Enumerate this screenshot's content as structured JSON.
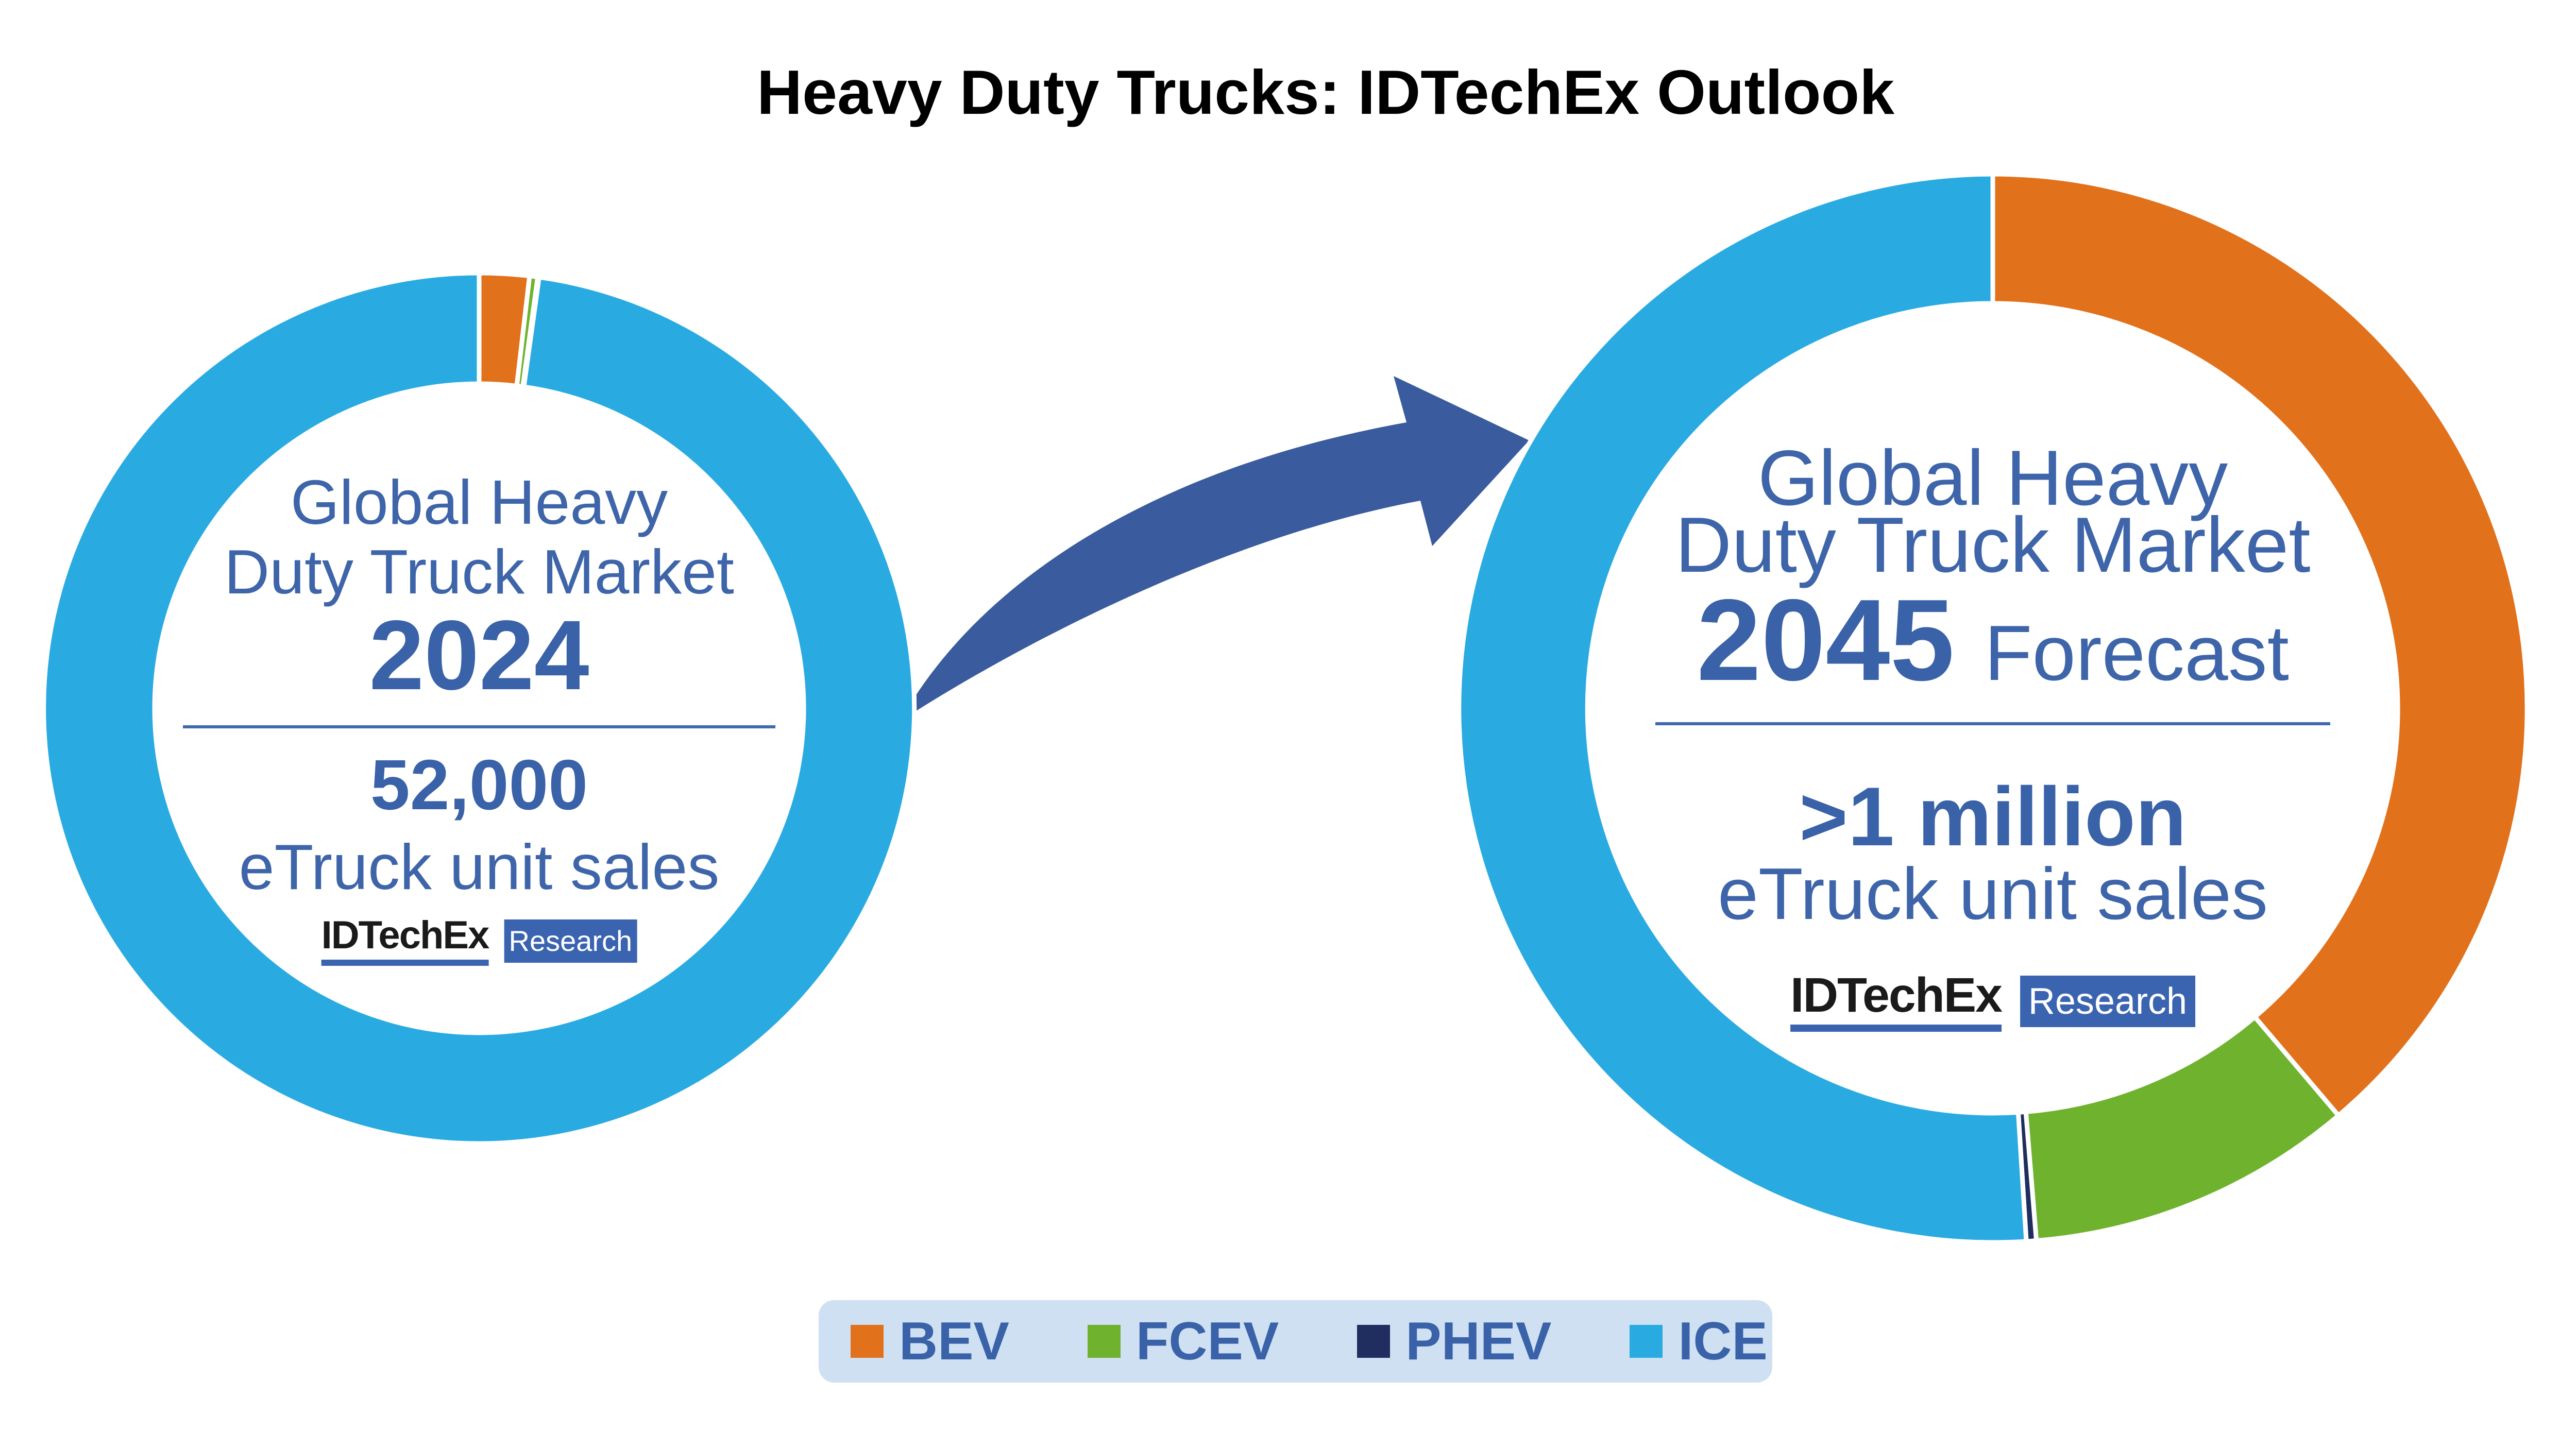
{
  "title": "Heavy Duty Trucks: IDTechEx Outlook",
  "colors": {
    "title_text": "#2E5CA8",
    "body_text": "#3E65A9",
    "strong_text": "#3A62A8",
    "divider": "#4169AE",
    "arrow": "#3A5B9E",
    "legend_bg": "#CEE0F2",
    "logo_blue": "#3A64B0",
    "logo_black": "#1A1A1A",
    "series": {
      "BEV": "#E2711B",
      "FCEV": "#6EB22D",
      "PHEV": "#1F2D5F",
      "ICE": "#29ABE2"
    }
  },
  "legend": {
    "items": [
      {
        "label": "BEV",
        "color": "#E2711B"
      },
      {
        "label": "FCEV",
        "color": "#6EB22D"
      },
      {
        "label": "PHEV",
        "color": "#1F2D5F"
      },
      {
        "label": "ICE",
        "color": "#29ABE2"
      }
    ]
  },
  "donut_2024": {
    "line1": "Global Heavy",
    "line2": "Duty Truck Market",
    "year": "2024",
    "stat_value": "52,000",
    "stat_label": "eTruck unit sales",
    "logo_brand": "IDTechEx",
    "logo_sub": "Research"
  },
  "donut_2045": {
    "line1": "Global Heavy",
    "line2": "Duty Truck Market",
    "year": "2045",
    "year_suffix": "Forecast",
    "stat_value": ">1 million",
    "stat_label": "eTruck unit sales",
    "logo_brand": "IDTechEx",
    "logo_sub": "Research"
  },
  "chart_data": [
    {
      "type": "pie",
      "subtype": "donut",
      "title": "Global Heavy Duty Truck Market 2024",
      "categories": [
        "BEV",
        "FCEV",
        "PHEV",
        "ICE"
      ],
      "values": [
        1.85,
        0.3,
        0.05,
        97.8
      ],
      "unit": "% share of unit sales",
      "annotation": "52,000 eTruck unit sales",
      "start_angle_deg": 0,
      "direction": "clockwise",
      "legend_position": "bottom"
    },
    {
      "type": "pie",
      "subtype": "donut",
      "title": "Global Heavy Duty Truck Market 2045 Forecast",
      "categories": [
        "BEV",
        "FCEV",
        "PHEV",
        "ICE"
      ],
      "values": [
        38.8,
        9.9,
        0.3,
        51.0
      ],
      "unit": "% share of unit sales",
      "annotation": ">1 million eTruck unit sales",
      "start_angle_deg": 0,
      "direction": "clockwise",
      "legend_position": "bottom"
    }
  ]
}
